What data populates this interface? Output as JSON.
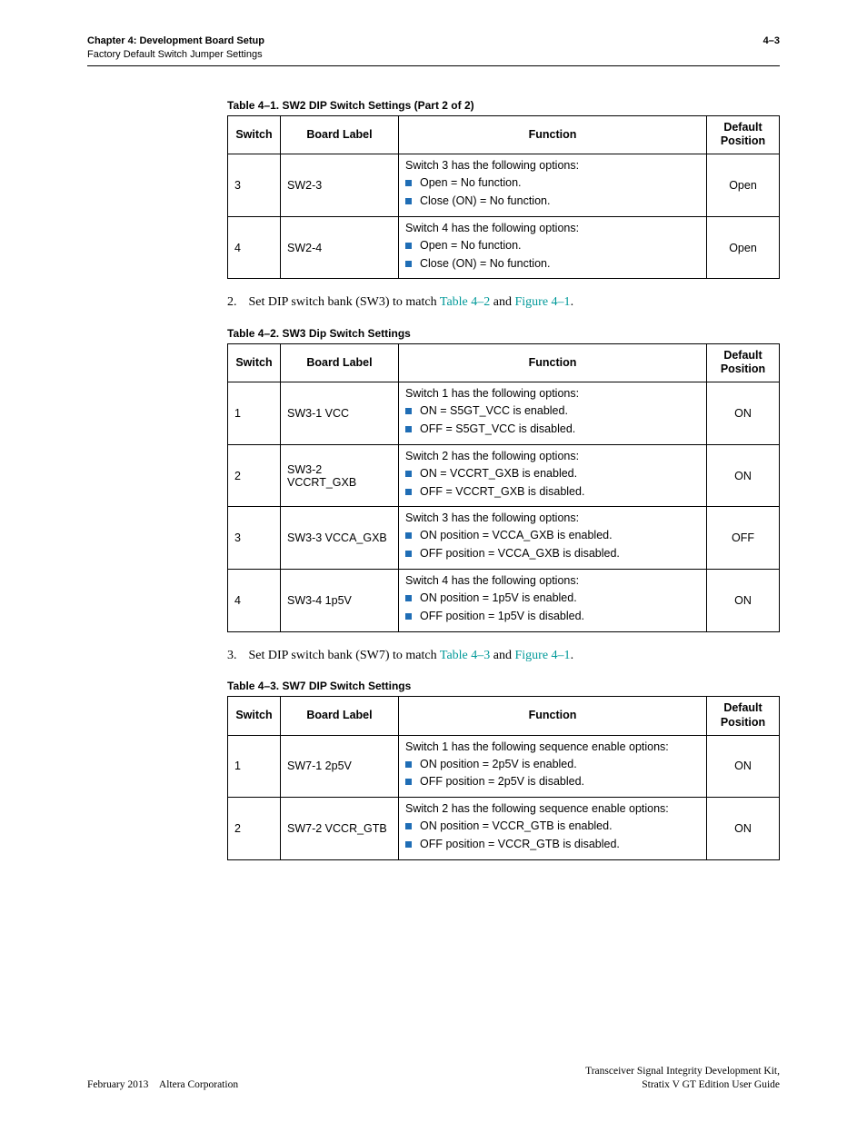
{
  "header": {
    "chapter": "Chapter 4: Development Board Setup",
    "section": "Factory Default Switch Jumper Settings",
    "page_num": "4–3"
  },
  "table1": {
    "caption": "Table 4–1. SW2 DIP Switch Settings  (Part 2 of 2)",
    "headers": {
      "c1": "Switch",
      "c2": "Board Label",
      "c3": "Function",
      "c4": "Default Position"
    },
    "rows": [
      {
        "switch": "3",
        "label": "SW2-3",
        "intro": "Switch 3 has the following options:",
        "opts": [
          "Open = No function.",
          "Close (ON) = No function."
        ],
        "pos": "Open"
      },
      {
        "switch": "4",
        "label": "SW2-4",
        "intro": "Switch 4 has the following options:",
        "opts": [
          "Open = No function.",
          "Close (ON) = No function."
        ],
        "pos": "Open"
      }
    ]
  },
  "step2": {
    "num": "2.",
    "pre": "Set DIP switch bank (SW3) to match ",
    "link1": "Table 4–2",
    "mid": " and ",
    "link2": "Figure 4–1",
    "post": "."
  },
  "table2": {
    "caption": "Table 4–2. SW3 Dip Switch Settings",
    "headers": {
      "c1": "Switch",
      "c2": "Board Label",
      "c3": "Function",
      "c4": "Default Position"
    },
    "rows": [
      {
        "switch": "1",
        "label": "SW3-1 VCC",
        "intro": "Switch 1 has the following options:",
        "opts": [
          "ON = S5GT_VCC is enabled.",
          "OFF = S5GT_VCC is disabled."
        ],
        "pos": "ON"
      },
      {
        "switch": "2",
        "label": "SW3-2 VCCRT_GXB",
        "intro": "Switch 2 has the following options:",
        "opts": [
          "ON = VCCRT_GXB is enabled.",
          "OFF = VCCRT_GXB is disabled."
        ],
        "pos": "ON"
      },
      {
        "switch": "3",
        "label": "SW3-3 VCCA_GXB",
        "intro": "Switch 3 has the following options:",
        "opts": [
          "ON position = VCCA_GXB is enabled.",
          "OFF position = VCCA_GXB is disabled."
        ],
        "pos": "OFF"
      },
      {
        "switch": "4",
        "label": "SW3-4 1p5V",
        "intro": "Switch 4 has the following options:",
        "opts": [
          "ON position = 1p5V is enabled.",
          "OFF position = 1p5V is disabled."
        ],
        "pos": "ON"
      }
    ]
  },
  "step3": {
    "num": "3.",
    "pre": "Set DIP switch bank (SW7) to match ",
    "link1": "Table 4–3",
    "mid": " and ",
    "link2": "Figure 4–1",
    "post": "."
  },
  "table3": {
    "caption": "Table 4–3. SW7 DIP Switch Settings",
    "headers": {
      "c1": "Switch",
      "c2": "Board Label",
      "c3": "Function",
      "c4": "Default Position"
    },
    "rows": [
      {
        "switch": "1",
        "label": "SW7-1 2p5V",
        "intro": "Switch 1 has the following sequence enable options:",
        "opts": [
          "ON position = 2p5V is enabled.",
          "OFF position = 2p5V is disabled."
        ],
        "pos": "ON"
      },
      {
        "switch": "2",
        "label": "SW7-2 VCCR_GTB",
        "intro": "Switch 2 has the following sequence enable options:",
        "opts": [
          "ON position = VCCR_GTB is enabled.",
          "OFF position = VCCR_GTB is disabled."
        ],
        "pos": "ON"
      }
    ]
  },
  "footer": {
    "left": "February 2013 Altera Corporation",
    "right1": "Transceiver Signal Integrity Development Kit,",
    "right2": "Stratix V GT Edition User Guide"
  }
}
